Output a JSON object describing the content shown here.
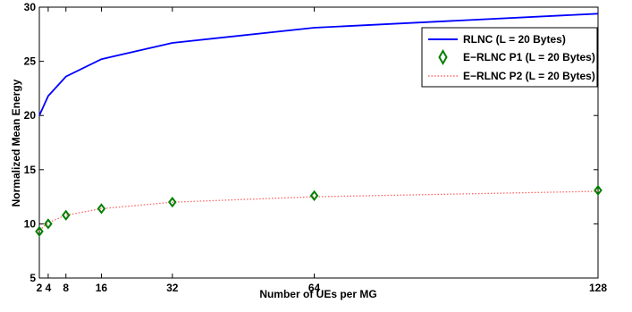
{
  "chart_data": {
    "type": "line",
    "xlabel": "Number of UEs per MG",
    "ylabel": "Normalized Mean Energy",
    "xlim": [
      2,
      128
    ],
    "ylim": [
      5,
      30
    ],
    "xticks": [
      2,
      4,
      8,
      16,
      32,
      64,
      128
    ],
    "yticks": [
      5,
      10,
      15,
      20,
      25,
      30
    ],
    "grid": false,
    "legend_position": "top-right",
    "series": [
      {
        "name": "RLNC (L = 20 Bytes)",
        "style": "solid-line",
        "color": "#0000ff",
        "x": [
          2,
          4,
          8,
          16,
          32,
          64,
          128
        ],
        "y": [
          20.0,
          21.8,
          23.6,
          25.2,
          26.7,
          28.1,
          29.4
        ]
      },
      {
        "name": "E−RLNC P1 (L = 20 Bytes)",
        "style": "diamond-markers",
        "color": "#008000",
        "x": [
          2,
          4,
          8,
          16,
          32,
          64,
          128
        ],
        "y": [
          9.3,
          10.0,
          10.8,
          11.4,
          12.0,
          12.6,
          13.1
        ]
      },
      {
        "name": "E−RLNC P2 (L = 20 Bytes)",
        "style": "dotted-line",
        "color": "#ff6666",
        "x": [
          2,
          4,
          8,
          16,
          32,
          64,
          128
        ],
        "y": [
          9.4,
          10.1,
          10.8,
          11.4,
          12.0,
          12.5,
          13.0
        ]
      }
    ]
  }
}
